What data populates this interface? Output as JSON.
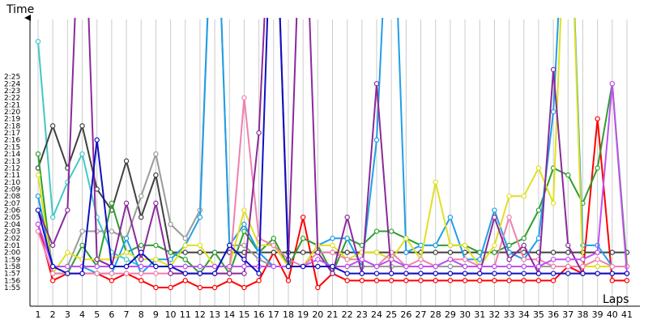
{
  "chart_data": {
    "type": "line",
    "xlabel": "Laps",
    "ylabel": "Time",
    "x": [
      1,
      2,
      3,
      4,
      5,
      6,
      7,
      8,
      9,
      10,
      11,
      12,
      13,
      14,
      15,
      16,
      17,
      18,
      19,
      20,
      21,
      22,
      23,
      24,
      25,
      26,
      27,
      28,
      29,
      30,
      31,
      32,
      33,
      34,
      35,
      36,
      37,
      38,
      39,
      40,
      41
    ],
    "x_ticks": [
      "1",
      "2",
      "3",
      "4",
      "5",
      "6",
      "7",
      "8",
      "9",
      "10",
      "11",
      "12",
      "13",
      "14",
      "15",
      "16",
      "17",
      "18",
      "19",
      "20",
      "21",
      "22",
      "23",
      "24",
      "25",
      "26",
      "27",
      "28",
      "29",
      "30",
      "31",
      "32",
      "33",
      "34",
      "35",
      "36",
      "37",
      "38",
      "39",
      "40",
      "41"
    ],
    "y_ticks": [
      "1:55",
      "1:56",
      "1:57",
      "1:58",
      "1:59",
      "2:00",
      "2:01",
      "2:02",
      "2:03",
      "2:04",
      "2:05",
      "2:06",
      "2:07",
      "2:08",
      "2:09",
      "2:10",
      "2:11",
      "2:12",
      "2:13",
      "2:14",
      "2:15",
      "2:16",
      "2:17",
      "2:18",
      "2:19",
      "2:20",
      "2:21",
      "2:22",
      "2:23",
      "2:24",
      "2:25"
    ],
    "y_unit": "seconds",
    "ylim": [
      114,
      147
    ],
    "grid": "vertical",
    "legend": "none",
    "series": [
      {
        "color": "#ff0000",
        "values": [
          124,
          116,
          117,
          117,
          117,
          116,
          117,
          116,
          115,
          115,
          116,
          115,
          115,
          116,
          115,
          116,
          120,
          116,
          125,
          115,
          117,
          116,
          116,
          116,
          116,
          116,
          116,
          116,
          116,
          116,
          116,
          116,
          116,
          116,
          116,
          116,
          118,
          117,
          139,
          116,
          116
        ]
      },
      {
        "color": "#40c8c8",
        "values": [
          150,
          125,
          130,
          134,
          125,
          120,
          119,
          118,
          118,
          118,
          118,
          118,
          118,
          118,
          118,
          118,
          118,
          118,
          118,
          118,
          118,
          118,
          118,
          118,
          118,
          118,
          118,
          118,
          118,
          118,
          118,
          118,
          118,
          118,
          118,
          118,
          118,
          118,
          118,
          118,
          118
        ]
      },
      {
        "color": "#404040",
        "values": [
          132,
          138,
          132,
          138,
          129,
          126,
          133,
          125,
          131,
          120,
          120,
          120,
          120,
          120,
          120,
          120,
          120,
          120,
          120,
          120,
          120,
          120,
          120,
          120,
          120,
          120,
          120,
          120,
          120,
          120,
          120,
          120,
          120,
          120,
          120,
          120,
          120,
          120,
          120,
          120,
          120
        ]
      },
      {
        "color": "#2e9e2e",
        "values": [
          134,
          117,
          117,
          121,
          118,
          127,
          120,
          121,
          121,
          120,
          119,
          117,
          120,
          117,
          123,
          120,
          122,
          118,
          122,
          121,
          117,
          122,
          121,
          123,
          123,
          122,
          121,
          121,
          121,
          121,
          120,
          120,
          121,
          122,
          126,
          132,
          131,
          127,
          132,
          144,
          118
        ]
      },
      {
        "color": "#9a9a9a",
        "values": [
          128,
          118,
          118,
          123,
          123,
          123,
          122,
          128,
          134,
          124,
          122,
          126,
          180,
          121,
          121,
          119,
          118,
          118,
          118,
          118,
          118,
          118,
          118,
          118,
          118,
          118,
          118,
          118,
          118,
          118,
          118,
          118,
          118,
          118,
          118,
          118,
          118,
          118,
          118,
          118,
          118
        ]
      },
      {
        "color": "#1f9fe8",
        "values": [
          128,
          118,
          118,
          118,
          117,
          117,
          122,
          117,
          119,
          119,
          121,
          125,
          180,
          121,
          124,
          120,
          118,
          118,
          118,
          121,
          122,
          122,
          118,
          136,
          180,
          120,
          121,
          121,
          125,
          119,
          119,
          126,
          120,
          119,
          122,
          140,
          180,
          121,
          121,
          118,
          118
        ]
      },
      {
        "color": "#e0e020",
        "values": [
          131,
          117,
          120,
          119,
          119,
          119,
          120,
          119,
          119,
          118,
          121,
          121,
          118,
          118,
          126,
          121,
          121,
          118,
          118,
          121,
          121,
          119,
          120,
          120,
          119,
          122,
          119,
          130,
          121,
          121,
          118,
          121,
          128,
          128,
          132,
          127,
          180,
          118,
          118,
          118,
          118
        ]
      },
      {
        "color": "#f080b0",
        "values": [
          123,
          117,
          117,
          117,
          117,
          117,
          117,
          117,
          117,
          117,
          117,
          117,
          117,
          117,
          142,
          122,
          121,
          119,
          118,
          120,
          120,
          119,
          119,
          118,
          120,
          118,
          119,
          118,
          119,
          119,
          118,
          118,
          125,
          119,
          119,
          118,
          118,
          118,
          119,
          118,
          118
        ]
      },
      {
        "color": "#8a2a9a",
        "values": [
          126,
          121,
          126,
          180,
          119,
          118,
          127,
          119,
          127,
          117,
          117,
          117,
          117,
          117,
          117,
          137,
          180,
          119,
          180,
          120,
          117,
          125,
          117,
          144,
          117,
          117,
          117,
          117,
          117,
          117,
          117,
          125,
          119,
          121,
          117,
          146,
          121,
          117,
          117,
          117,
          117
        ]
      },
      {
        "color": "#c050f0",
        "values": [
          124,
          118,
          118,
          118,
          118,
          118,
          118,
          118,
          118,
          118,
          118,
          118,
          118,
          118,
          118,
          118,
          118,
          118,
          118,
          119,
          118,
          118,
          119,
          118,
          119,
          118,
          118,
          118,
          119,
          118,
          118,
          118,
          118,
          118,
          118,
          119,
          119,
          119,
          120,
          144,
          117
        ]
      },
      {
        "color": "#1010c0",
        "values": [
          126,
          118,
          117,
          117,
          136,
          118,
          118,
          120,
          118,
          118,
          117,
          117,
          117,
          121,
          119,
          117,
          180,
          118,
          118,
          118,
          118,
          117,
          117,
          117,
          117,
          117,
          117,
          117,
          117,
          117,
          117,
          117,
          117,
          117,
          117,
          117,
          117,
          117,
          117,
          117,
          117
        ]
      }
    ]
  }
}
